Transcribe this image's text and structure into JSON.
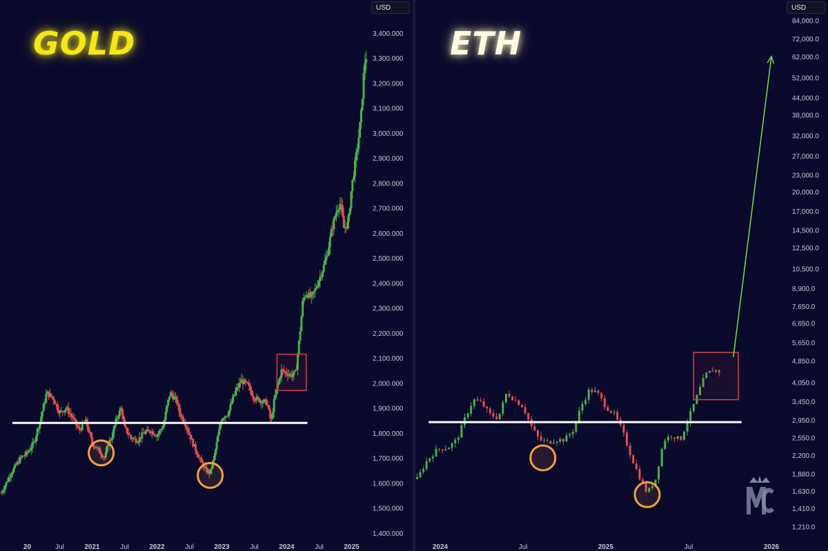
{
  "colors": {
    "background": "#0a0a2c",
    "up": "#4caf50",
    "down": "#e05050",
    "support": "#ffffff",
    "circle": "#f5a040",
    "box": "#d04545",
    "arrow": "#7ddc4a"
  },
  "chart_data": [
    {
      "type": "candlestick",
      "title": "GOLD",
      "currency": "USD",
      "y_ticks": [
        1400,
        1500,
        1600,
        1700,
        1800,
        1900,
        2000,
        2100,
        2200,
        2300,
        2400,
        2500,
        2600,
        2700,
        2800,
        2900,
        3000,
        3100,
        3200,
        3300,
        3400
      ],
      "y_tick_labels": [
        "1,400.000",
        "1,500.000",
        "1,600.000",
        "1,700.000",
        "1,800.000",
        "1,900.000",
        "2,000.000",
        "2,100.000",
        "2,200.000",
        "2,300.000",
        "2,400.000",
        "2,500.000",
        "2,600.000",
        "2,700.000",
        "2,800.000",
        "2,900.000",
        "3,000.000",
        "3,100.000",
        "3,200.000",
        "3,300.000",
        "3,400.000"
      ],
      "ylim": [
        1380,
        3510
      ],
      "x_ticks": [
        {
          "label": "20",
          "t": 2020.0,
          "year": true
        },
        {
          "label": "Jul",
          "t": 2020.5,
          "year": false
        },
        {
          "label": "2021",
          "t": 2021.0,
          "year": true
        },
        {
          "label": "Jul",
          "t": 2021.5,
          "year": false
        },
        {
          "label": "2022",
          "t": 2022.0,
          "year": true
        },
        {
          "label": "Jul",
          "t": 2022.5,
          "year": false
        },
        {
          "label": "2023",
          "t": 2023.0,
          "year": true
        },
        {
          "label": "Jul",
          "t": 2023.5,
          "year": false
        },
        {
          "label": "2024",
          "t": 2024.0,
          "year": true
        },
        {
          "label": "Jul",
          "t": 2024.5,
          "year": false
        },
        {
          "label": "2025",
          "t": 2025.0,
          "year": true
        }
      ],
      "xlim": [
        2019.58,
        2025.25
      ],
      "series_close": [
        [
          2019.6,
          1560
        ],
        [
          2019.75,
          1640
        ],
        [
          2019.9,
          1700
        ],
        [
          2020.0,
          1720
        ],
        [
          2020.1,
          1760
        ],
        [
          2020.2,
          1850
        ],
        [
          2020.3,
          1960
        ],
        [
          2020.4,
          1940
        ],
        [
          2020.5,
          1880
        ],
        [
          2020.6,
          1900
        ],
        [
          2020.7,
          1860
        ],
        [
          2020.8,
          1810
        ],
        [
          2020.9,
          1850
        ],
        [
          2021.0,
          1760
        ],
        [
          2021.1,
          1730
        ],
        [
          2021.2,
          1700
        ],
        [
          2021.25,
          1760
        ],
        [
          2021.3,
          1780
        ],
        [
          2021.38,
          1860
        ],
        [
          2021.45,
          1900
        ],
        [
          2021.5,
          1820
        ],
        [
          2021.6,
          1780
        ],
        [
          2021.7,
          1770
        ],
        [
          2021.8,
          1800
        ],
        [
          2021.9,
          1810
        ],
        [
          2022.0,
          1790
        ],
        [
          2022.1,
          1830
        ],
        [
          2022.15,
          1900
        ],
        [
          2022.2,
          1960
        ],
        [
          2022.3,
          1930
        ],
        [
          2022.35,
          1880
        ],
        [
          2022.45,
          1830
        ],
        [
          2022.55,
          1760
        ],
        [
          2022.65,
          1700
        ],
        [
          2022.75,
          1650
        ],
        [
          2022.82,
          1640
        ],
        [
          2022.88,
          1700
        ],
        [
          2022.95,
          1800
        ],
        [
          2023.0,
          1860
        ],
        [
          2023.1,
          1880
        ],
        [
          2023.2,
          1960
        ],
        [
          2023.3,
          2010
        ],
        [
          2023.4,
          1990
        ],
        [
          2023.5,
          1940
        ],
        [
          2023.6,
          1930
        ],
        [
          2023.7,
          1920
        ],
        [
          2023.76,
          1840
        ],
        [
          2023.8,
          1920
        ],
        [
          2023.86,
          1990
        ],
        [
          2023.92,
          2050
        ],
        [
          2024.0,
          2040
        ],
        [
          2024.08,
          2030
        ],
        [
          2024.14,
          2040
        ],
        [
          2024.2,
          2190
        ],
        [
          2024.25,
          2330
        ],
        [
          2024.3,
          2360
        ],
        [
          2024.38,
          2340
        ],
        [
          2024.45,
          2380
        ],
        [
          2024.55,
          2450
        ],
        [
          2024.62,
          2510
        ],
        [
          2024.7,
          2620
        ],
        [
          2024.78,
          2700
        ],
        [
          2024.83,
          2720
        ],
        [
          2024.88,
          2620
        ],
        [
          2024.95,
          2640
        ],
        [
          2025.0,
          2780
        ],
        [
          2025.05,
          2870
        ],
        [
          2025.1,
          2960
        ],
        [
          2025.15,
          3080
        ],
        [
          2025.2,
          3280
        ],
        [
          2025.24,
          3320
        ]
      ],
      "support_level": 1840,
      "support_range": [
        2019.77,
        2024.32
      ],
      "circles": [
        [
          2021.14,
          1720
        ],
        [
          2022.82,
          1630
        ]
      ],
      "box": {
        "t0": 2023.85,
        "t1": 2024.3,
        "p0": 1970,
        "p1": 2115
      }
    },
    {
      "type": "candlestick",
      "title": "ETH",
      "currency": "USD",
      "log_scale": true,
      "y_ticks": [
        1210,
        1410,
        1630,
        1880,
        2200,
        2550,
        2950,
        3450,
        4050,
        4850,
        5650,
        6650,
        7650,
        8900,
        10500,
        12500,
        14500,
        17000,
        20000,
        23000,
        27000,
        32000,
        38000,
        44000,
        52000,
        62000,
        72000,
        84000
      ],
      "y_tick_labels": [
        "1,210.0",
        "1,410.0",
        "1,630.0",
        "1,880.0",
        "2,200.0",
        "2,550.0",
        "2,950.0",
        "3,450.0",
        "4,050.0",
        "4,850.0",
        "5,650.0",
        "6,650.0",
        "7,650.0",
        "8,900.0",
        "10,500.0",
        "12,500.0",
        "14,500.0",
        "17,000.0",
        "20,000.0",
        "23,000.0",
        "27,000.0",
        "32,000.0",
        "38,000.0",
        "44,000.0",
        "52,000.0",
        "62,000.0",
        "72,000.0",
        "84,000.0"
      ],
      "ylim": [
        1100,
        95000
      ],
      "x_ticks": [
        {
          "label": "2024",
          "t": 2024.0,
          "year": true
        },
        {
          "label": "Jul",
          "t": 2024.5,
          "year": false
        },
        {
          "label": "2025",
          "t": 2025.0,
          "year": true
        },
        {
          "label": "Jul",
          "t": 2025.5,
          "year": false
        },
        {
          "label": "2026",
          "t": 2026.0,
          "year": true
        }
      ],
      "xlim": [
        2023.85,
        2026.1
      ],
      "series_close": [
        [
          2023.86,
          1800
        ],
        [
          2023.92,
          2100
        ],
        [
          2023.98,
          2300
        ],
        [
          2024.05,
          2350
        ],
        [
          2024.1,
          2500
        ],
        [
          2024.15,
          3000
        ],
        [
          2024.2,
          3500
        ],
        [
          2024.25,
          3400
        ],
        [
          2024.3,
          3100
        ],
        [
          2024.35,
          3000
        ],
        [
          2024.4,
          3700
        ],
        [
          2024.45,
          3500
        ],
        [
          2024.5,
          3300
        ],
        [
          2024.55,
          2800
        ],
        [
          2024.6,
          2500
        ],
        [
          2024.65,
          2450
        ],
        [
          2024.7,
          2500
        ],
        [
          2024.75,
          2500
        ],
        [
          2024.8,
          2700
        ],
        [
          2024.85,
          3300
        ],
        [
          2024.9,
          3800
        ],
        [
          2024.95,
          3700
        ],
        [
          2025.0,
          3300
        ],
        [
          2025.05,
          3100
        ],
        [
          2025.1,
          2700
        ],
        [
          2025.15,
          2200
        ],
        [
          2025.2,
          1850
        ],
        [
          2025.25,
          1600
        ],
        [
          2025.3,
          1800
        ],
        [
          2025.35,
          2500
        ],
        [
          2025.4,
          2600
        ],
        [
          2025.45,
          2500
        ],
        [
          2025.5,
          3000
        ],
        [
          2025.55,
          3600
        ],
        [
          2025.6,
          4300
        ],
        [
          2025.65,
          4500
        ],
        [
          2025.7,
          4400
        ]
      ],
      "support_level": 2900,
      "support_range": [
        2023.93,
        2025.82
      ],
      "circles": [
        [
          2024.62,
          2150
        ],
        [
          2025.25,
          1580
        ]
      ],
      "box": {
        "t0": 2025.53,
        "t1": 2025.8,
        "p0": 3500,
        "p1": 5200
      },
      "arrow": {
        "from": [
          2025.77,
          5000
        ],
        "to": [
          2026.0,
          62000
        ]
      }
    }
  ]
}
